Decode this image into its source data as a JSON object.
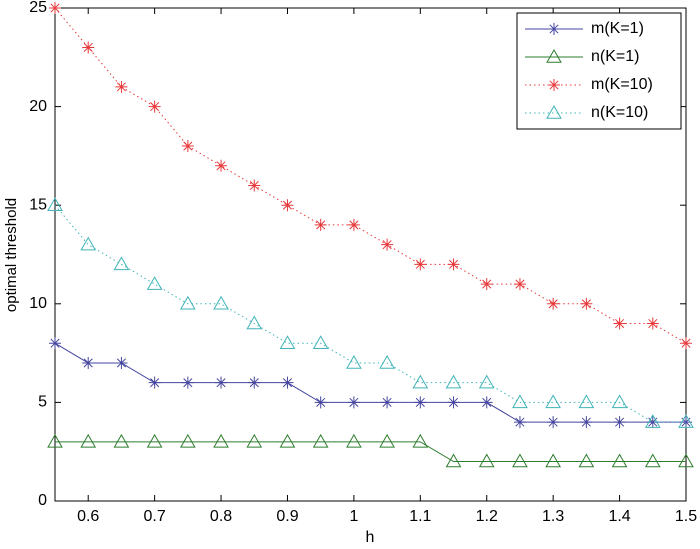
{
  "chart_data": {
    "type": "line",
    "x_label": "h",
    "y_label": "optimal threshold",
    "x": [
      0.55,
      0.6,
      0.65,
      0.7,
      0.75,
      0.8,
      0.85,
      0.9,
      0.95,
      1,
      1.05,
      1.1,
      1.15,
      1.2,
      1.25,
      1.3,
      1.35,
      1.4,
      1.45,
      1.5
    ],
    "series": [
      {
        "name": "m(K=1)",
        "color": "#4646a0",
        "line_style": "solid",
        "marker": "star",
        "values": [
          8,
          7,
          7,
          6,
          6,
          6,
          6,
          6,
          5,
          5,
          5,
          5,
          5,
          5,
          4,
          4,
          4,
          4,
          4,
          4
        ]
      },
      {
        "name": "n(K=1)",
        "color": "#2e7d2e",
        "line_style": "solid",
        "marker": "triangle",
        "values": [
          3,
          3,
          3,
          3,
          3,
          3,
          3,
          3,
          3,
          3,
          3,
          3,
          2,
          2,
          2,
          2,
          2,
          2,
          2,
          2
        ]
      },
      {
        "name": "m(K=10)",
        "color": "#e8383a",
        "line_style": "dotted",
        "marker": "star",
        "values": [
          25,
          23,
          21,
          20,
          18,
          17,
          16,
          15,
          14,
          14,
          13,
          12,
          12,
          11,
          11,
          10,
          10,
          9,
          9,
          8
        ]
      },
      {
        "name": "n(K=10)",
        "color": "#40b4b8",
        "line_style": "dotted",
        "marker": "triangle",
        "values": [
          15,
          13,
          12,
          11,
          10,
          10,
          9,
          8,
          8,
          7,
          7,
          6,
          6,
          6,
          5,
          5,
          5,
          5,
          4,
          4
        ]
      }
    ],
    "xlim": [
      0.55,
      1.5
    ],
    "xticks": [
      0.6,
      0.7,
      0.8,
      0.9,
      1,
      1.1,
      1.2,
      1.3,
      1.4,
      1.5
    ],
    "ylim": [
      0,
      25
    ],
    "yticks": [
      0,
      5,
      10,
      15,
      20,
      25
    ],
    "grid": false,
    "legend_position": "top-right"
  }
}
